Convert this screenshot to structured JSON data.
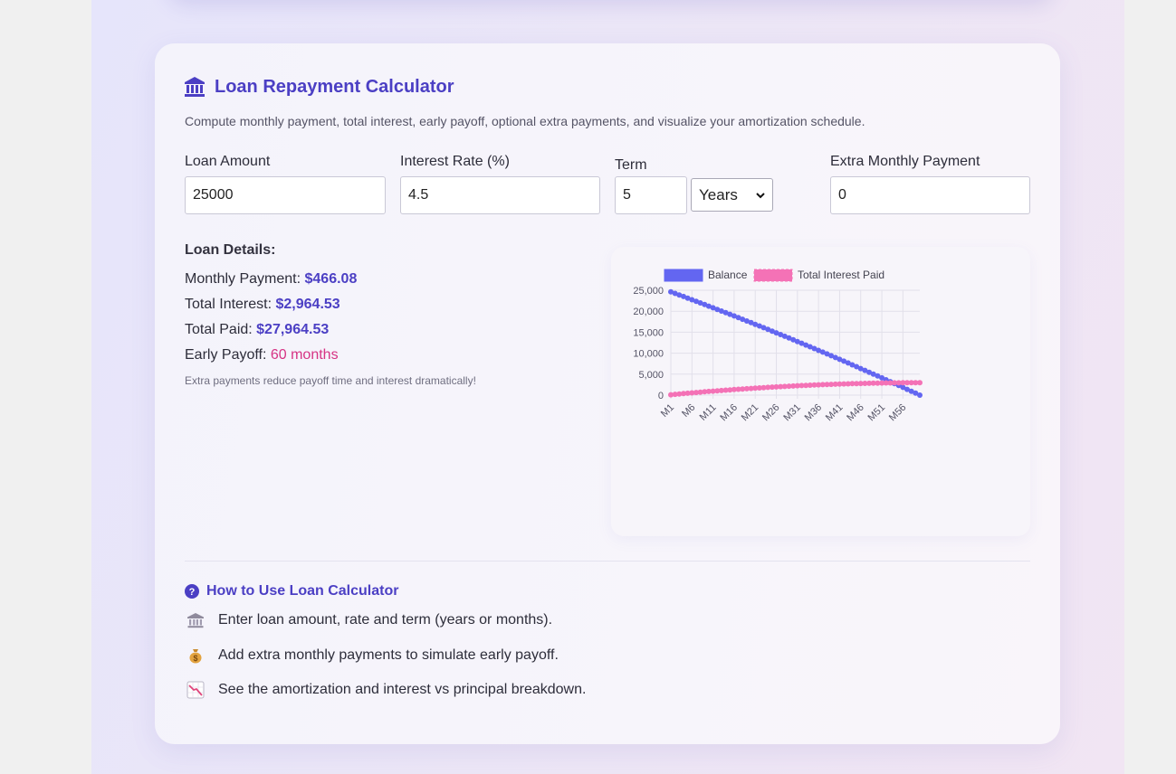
{
  "header": {
    "title": "Loan Repayment Calculator",
    "subtitle": "Compute monthly payment, total interest, early payoff, optional extra payments, and visualize your amortization schedule."
  },
  "form": {
    "loan_amount": {
      "label": "Loan Amount",
      "value": "25000"
    },
    "interest_rate": {
      "label": "Interest Rate (%)",
      "value": "4.5"
    },
    "term": {
      "label": "Term",
      "value": "5",
      "unit": "Years"
    },
    "extra_payment": {
      "label": "Extra Monthly Payment",
      "value": "0"
    }
  },
  "details": {
    "heading": "Loan Details:",
    "monthly_payment": {
      "label": "Monthly Payment: ",
      "value": "$466.08"
    },
    "total_interest": {
      "label": "Total Interest: ",
      "value": "$2,964.53"
    },
    "total_paid": {
      "label": "Total Paid: ",
      "value": "$27,964.53"
    },
    "early_payoff": {
      "label": "Early Payoff: ",
      "value": "60 months"
    },
    "note": "Extra payments reduce payoff time and interest dramatically!"
  },
  "help": {
    "title": "How to Use Loan Calculator",
    "tips": [
      {
        "icon": "bank-icon",
        "text": "Enter loan amount, rate and term (years or months)."
      },
      {
        "icon": "money-bag-icon",
        "text": "Add extra monthly payments to simulate early payoff."
      },
      {
        "icon": "chart-decreasing-icon",
        "text": "See the amortization and interest vs principal breakdown."
      }
    ]
  },
  "colors": {
    "accent": "#4b3fc4",
    "balance_line": "#6366f1",
    "interest_line": "#f472b6",
    "payoff_text": "#d63384"
  },
  "chart_data": {
    "type": "line",
    "title": "",
    "xlabel": "",
    "ylabel": "",
    "ylim": [
      0,
      25000
    ],
    "yticks": [
      0,
      5000,
      10000,
      15000,
      20000,
      25000
    ],
    "x_tick_labels": [
      "M1",
      "M6",
      "M11",
      "M16",
      "M21",
      "M26",
      "M31",
      "M36",
      "M41",
      "M46",
      "M51",
      "M56"
    ],
    "legend_position": "top",
    "grid": true,
    "principal": 25000,
    "annual_rate_percent": 4.5,
    "months": 60,
    "series": [
      {
        "name": "Balance",
        "color": "#6366f1",
        "start": 24627.67,
        "end": 0
      },
      {
        "name": "Total Interest Paid",
        "color": "#f472b6",
        "start": 93.75,
        "end": 2964.53
      }
    ]
  }
}
